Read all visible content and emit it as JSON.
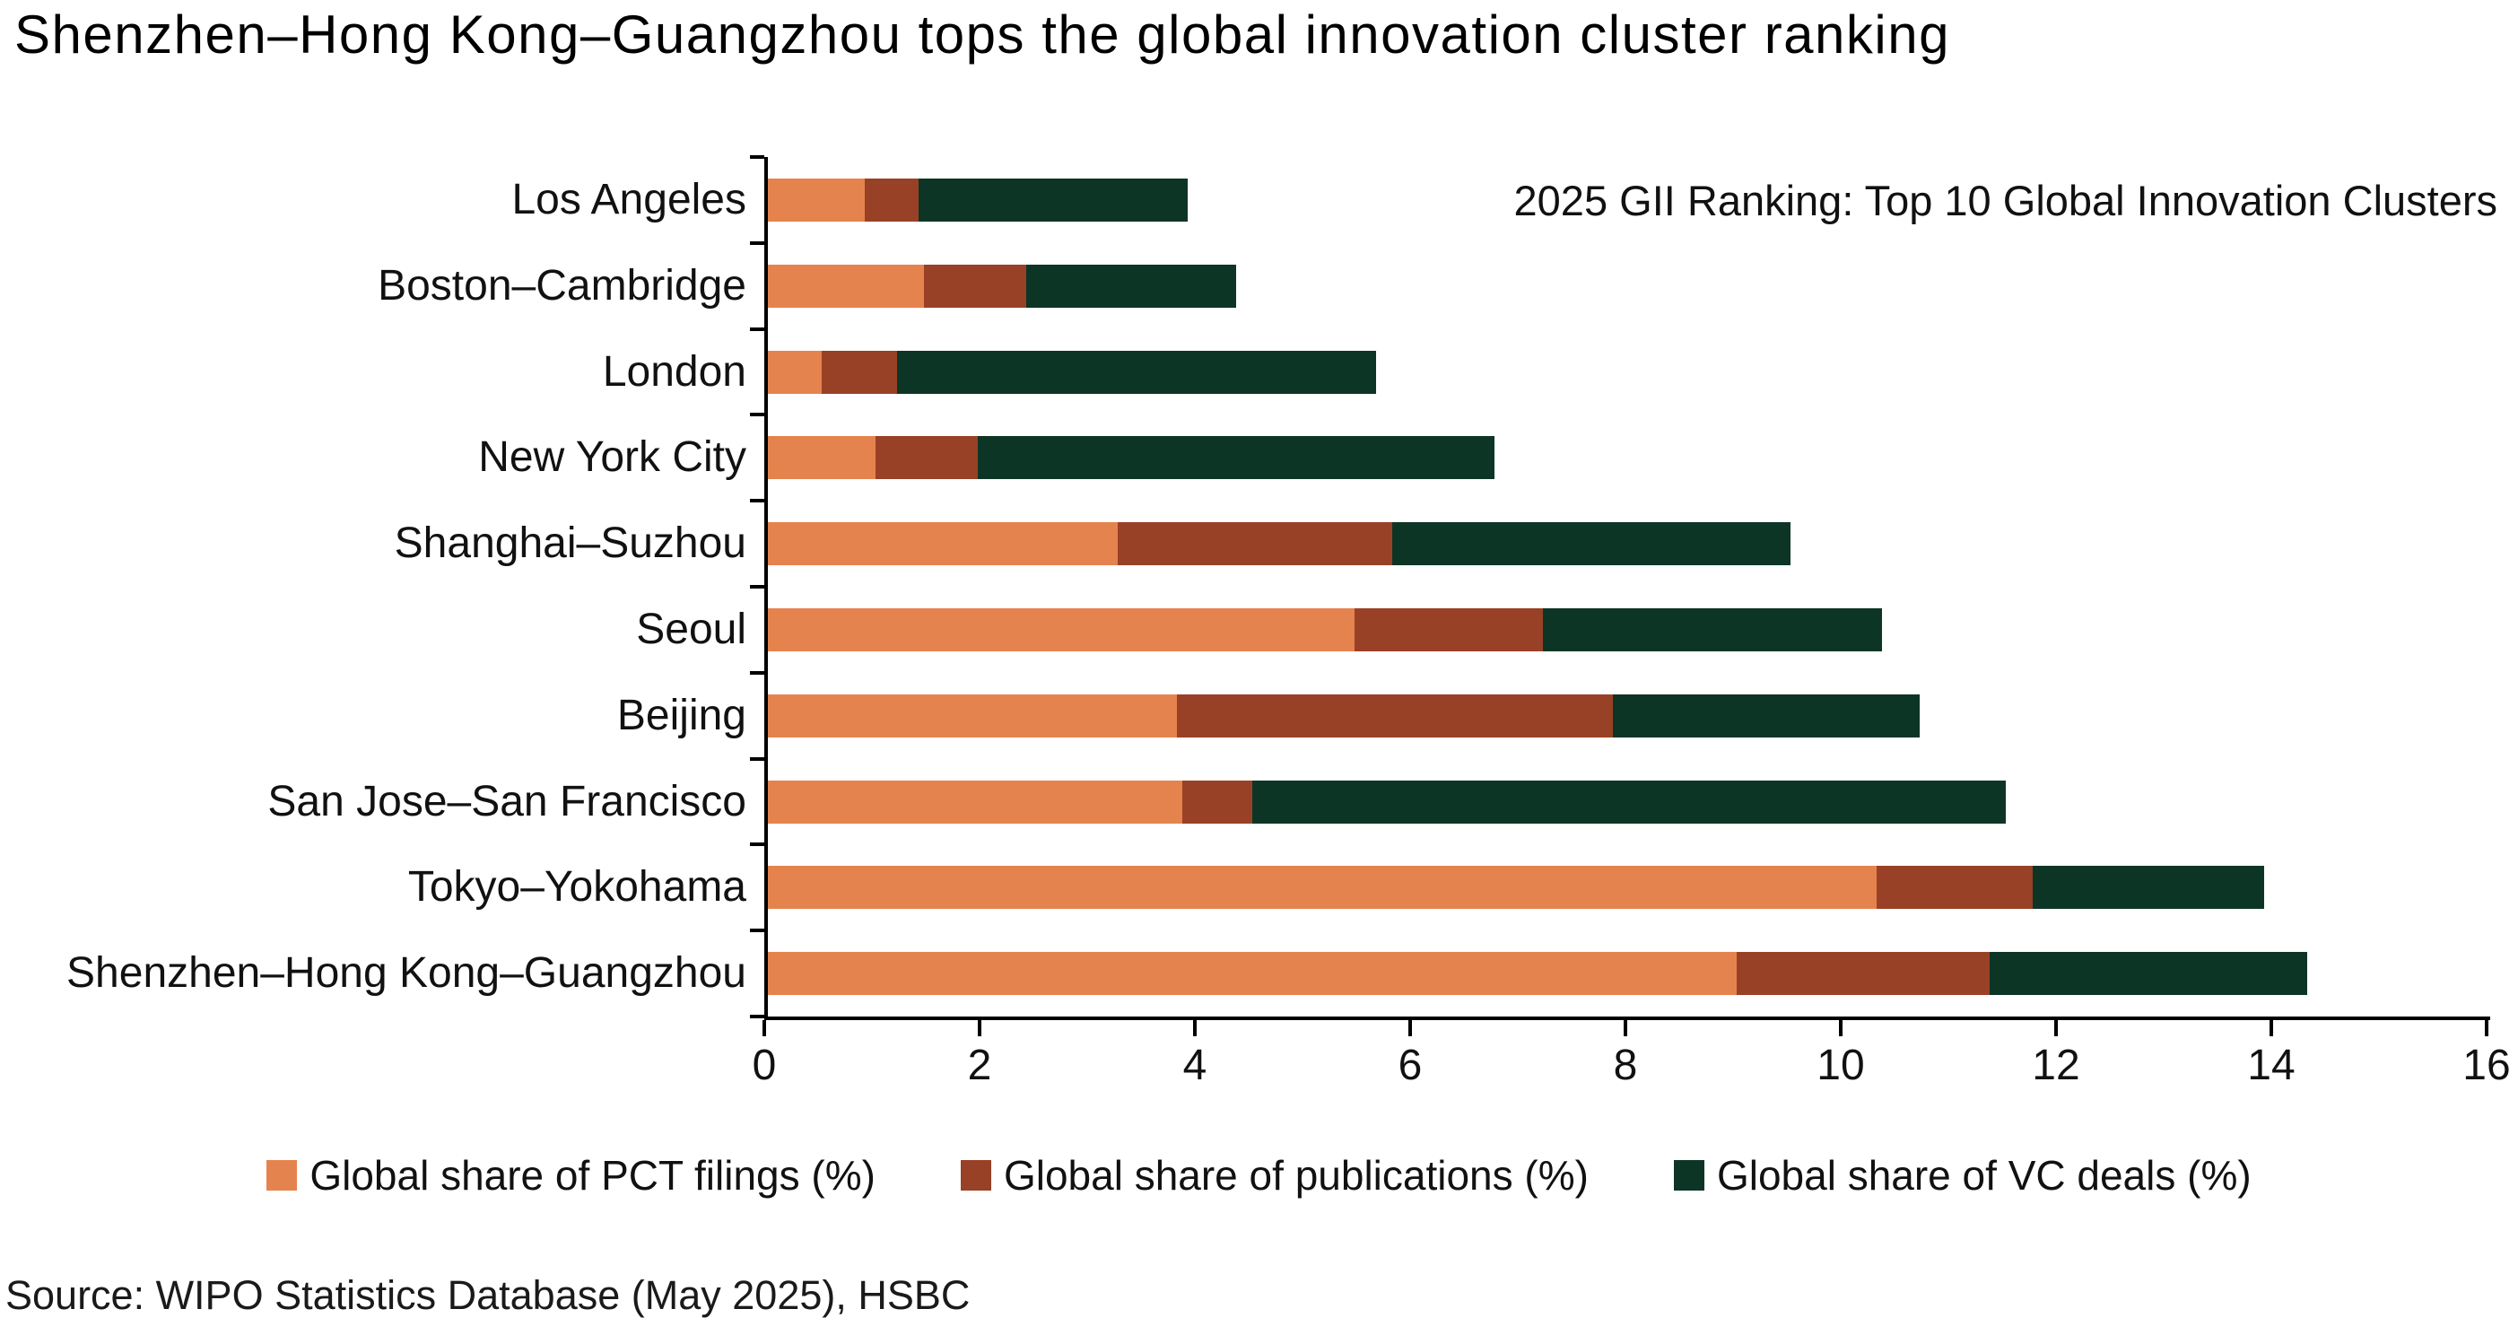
{
  "title": "Shenzhen–Hong Kong–Guangzhou tops the global innovation cluster ranking",
  "annotation": "2025 GII Ranking: Top 10 Global Innovation Clusters",
  "source": "Source: WIPO Statistics Database (May 2025), HSBC",
  "colors": {
    "pct_filings": "#E5834E",
    "publications": "#984126",
    "vc_deals": "#0D3526",
    "axis": "#000000",
    "text": "#111111",
    "background": "#FFFFFF"
  },
  "chart_data": {
    "type": "bar",
    "orientation": "horizontal",
    "stacked": true,
    "title": "2025 GII Ranking: Top 10 Global Innovation Clusters",
    "categories_top_to_bottom": [
      "Los Angeles",
      "Boston–Cambridge",
      "London",
      "New York City",
      "Shanghai–Suzhou",
      "Seoul",
      "Beijing",
      "San Jose–San Francisco",
      "Tokyo–Yokohama",
      "Shenzhen–Hong Kong–Guangzhou"
    ],
    "series": [
      {
        "name": "Global share of PCT filings (%)",
        "color": "#E5834E",
        "values": [
          0.9,
          1.45,
          0.5,
          1.0,
          3.25,
          5.45,
          3.8,
          3.85,
          10.3,
          9.0
        ]
      },
      {
        "name": "Global share of publications (%)",
        "color": "#984126",
        "values": [
          0.5,
          0.95,
          0.7,
          0.95,
          2.55,
          1.75,
          4.05,
          0.65,
          1.45,
          2.35
        ]
      },
      {
        "name": "Global share of VC deals (%)",
        "color": "#0D3526",
        "values": [
          2.5,
          1.95,
          4.45,
          4.8,
          3.7,
          3.15,
          2.85,
          7.0,
          2.15,
          2.95
        ]
      }
    ],
    "totals": [
      3.9,
      4.35,
      5.65,
      6.75,
      9.5,
      10.35,
      10.7,
      11.5,
      13.9,
      14.3
    ],
    "xlim": [
      0,
      16
    ],
    "xticks": [
      0,
      2,
      4,
      6,
      8,
      10,
      12,
      14,
      16
    ],
    "grid": false,
    "legend_position": "bottom"
  }
}
